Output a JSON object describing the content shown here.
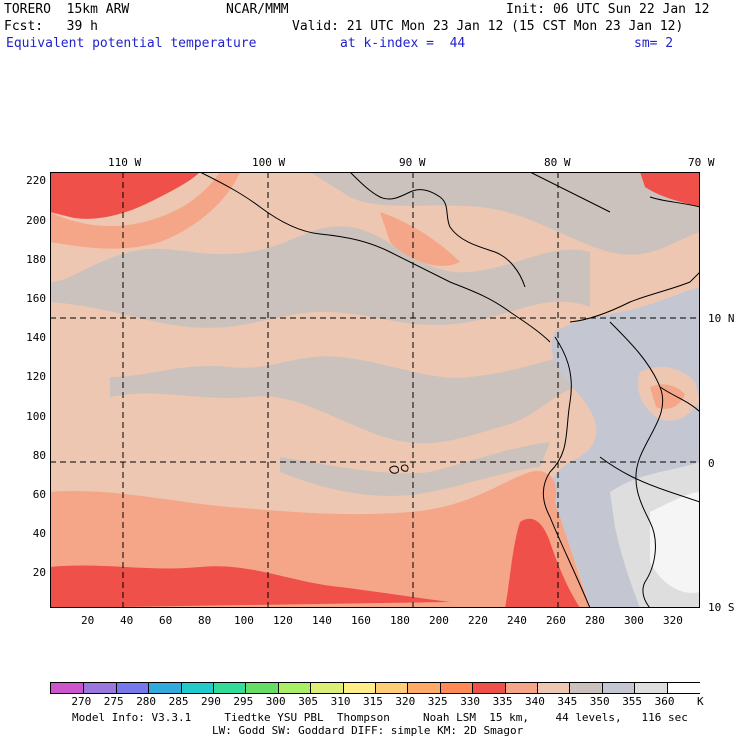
{
  "header": {
    "model": "TORERO  15km ARW",
    "org": "NCAR/MMM",
    "init": "Init: 06 UTC Sun 22 Jan 12",
    "fcst": "Fcst:   39 h",
    "valid": "Valid: 21 UTC Mon 23 Jan 12 (15 CST Mon 23 Jan 12)",
    "field": "Equivalent potential temperature",
    "level": "at k-index =  44",
    "smooth": "sm= 2"
  },
  "map": {
    "lon_labels": [
      "110 W",
      "100 W",
      "90 W",
      "80 W",
      "70 W"
    ],
    "lat_labels": [
      "10 N",
      "0",
      "10 S"
    ],
    "x_ticks": [
      "20",
      "40",
      "60",
      "80",
      "100",
      "120",
      "140",
      "160",
      "180",
      "200",
      "220",
      "240",
      "260",
      "280",
      "300",
      "320"
    ],
    "y_ticks": [
      "220",
      "200",
      "180",
      "160",
      "140",
      "120",
      "100",
      "80",
      "60",
      "40",
      "20"
    ],
    "colors": {
      "c335": "#f0504a",
      "c340": "#f5a688",
      "c345": "#edc7b1",
      "c350": "#cbc2bd",
      "c355": "#c4c7d1",
      "c360": "#dedede",
      "hi": "#f5f5f5"
    }
  },
  "colorbar": {
    "labels": [
      "270",
      "275",
      "280",
      "285",
      "290",
      "295",
      "300",
      "305",
      "310",
      "315",
      "320",
      "325",
      "330",
      "335",
      "340",
      "345",
      "350",
      "355",
      "360"
    ],
    "unit": "K",
    "colors": [
      "#cc55cc",
      "#9977dd",
      "#7777ee",
      "#33aadd",
      "#22cccc",
      "#33dd99",
      "#66dd66",
      "#aaee66",
      "#ddee77",
      "#ffee88",
      "#ffcc77",
      "#ffaa66",
      "#ff8855",
      "#f0504a",
      "#f5a688",
      "#edc7b1",
      "#cbc2bd",
      "#c4c7d1",
      "#dedede",
      "#ffffff"
    ]
  },
  "footer": {
    "line1": "Model Info: V3.3.1     Tiedtke YSU PBL  Thompson     Noah LSM  15 km,    44 levels,   116 sec",
    "line2": "LW: Godd SW: Goddard DIFF: simple KM: 2D Smagor"
  }
}
